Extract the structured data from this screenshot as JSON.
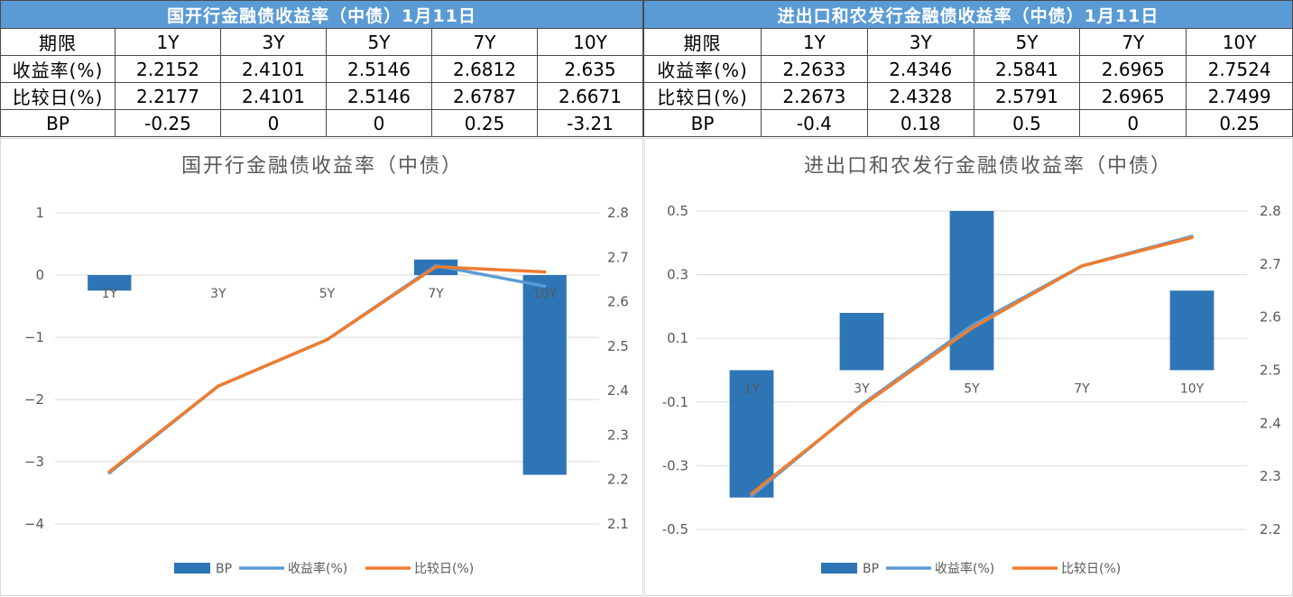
{
  "tables": [
    {
      "title": "国开行金融债收益率（中债）1月11日",
      "header": [
        "期限",
        "1Y",
        "3Y",
        "5Y",
        "7Y",
        "10Y"
      ],
      "rows": [
        [
          "收益率(%)",
          "2.2152",
          "2.4101",
          "2.5146",
          "2.6812",
          "2.635"
        ],
        [
          "比较日(%)",
          "2.2177",
          "2.4101",
          "2.5146",
          "2.6787",
          "2.6671"
        ],
        [
          "BP",
          "-0.25",
          "0",
          "0",
          "0.25",
          "-3.21"
        ]
      ]
    },
    {
      "title": "进出口和农发行金融债收益率（中债）1月11日",
      "header": [
        "期限",
        "1Y",
        "3Y",
        "5Y",
        "7Y",
        "10Y"
      ],
      "rows": [
        [
          "收益率(%)",
          "2.2633",
          "2.4346",
          "2.5841",
          "2.6965",
          "2.7524"
        ],
        [
          "比较日(%)",
          "2.2673",
          "2.4328",
          "2.5791",
          "2.6965",
          "2.7499"
        ],
        [
          "BP",
          "-0.4",
          "0.18",
          "0.5",
          "0",
          "0.25"
        ]
      ]
    }
  ],
  "chart_data": [
    {
      "type": "bar",
      "title": "国开行金融债收益率（中债）",
      "categories": [
        "1Y",
        "3Y",
        "5Y",
        "7Y",
        "10Y"
      ],
      "series": [
        {
          "name": "BP",
          "kind": "bar",
          "axis": "left",
          "color": "#2e75b6",
          "values": [
            -0.25,
            0,
            0,
            0.25,
            -3.21
          ]
        },
        {
          "name": "收益率(%)",
          "kind": "line",
          "axis": "right",
          "color": "#5b9bd5",
          "values": [
            2.2152,
            2.4101,
            2.5146,
            2.6812,
            2.635
          ]
        },
        {
          "name": "比较日(%)",
          "kind": "line",
          "axis": "right",
          "color": "#ed7d31",
          "values": [
            2.2177,
            2.4101,
            2.5146,
            2.6787,
            2.6671
          ]
        }
      ],
      "ylim_left": [
        -4,
        1
      ],
      "yticks_left": [
        1,
        0,
        -1,
        -2,
        -3,
        -4
      ],
      "ytick_labels_left": [
        "1",
        "0",
        "−1",
        "−2",
        "−3",
        "−4"
      ],
      "ylim_right": [
        2.1,
        2.8
      ],
      "yticks_right": [
        2.8,
        2.7,
        2.6,
        2.5,
        2.4,
        2.3,
        2.2,
        2.1
      ],
      "ytick_labels_right": [
        "2.8",
        "2.7",
        "2.6",
        "2.5",
        "2.4",
        "2.3",
        "2.2",
        "2.1"
      ],
      "grid": true,
      "legend": "bottom"
    },
    {
      "type": "bar",
      "title": "进出口和农发行金融债收益率（中债）",
      "categories": [
        "1Y",
        "3Y",
        "5Y",
        "7Y",
        "10Y"
      ],
      "series": [
        {
          "name": "BP",
          "kind": "bar",
          "axis": "left",
          "color": "#2e75b6",
          "values": [
            -0.4,
            0.18,
            0.5,
            0,
            0.25
          ]
        },
        {
          "name": "收益率(%)",
          "kind": "line",
          "axis": "right",
          "color": "#5b9bd5",
          "values": [
            2.2633,
            2.4346,
            2.5841,
            2.6965,
            2.7524
          ]
        },
        {
          "name": "比较日(%)",
          "kind": "line",
          "axis": "right",
          "color": "#ed7d31",
          "values": [
            2.2673,
            2.4328,
            2.5791,
            2.6965,
            2.7499
          ]
        }
      ],
      "ylim_left": [
        -0.5,
        0.5
      ],
      "yticks_left": [
        0.5,
        0.3,
        0.1,
        -0.1,
        -0.3,
        -0.5
      ],
      "ytick_labels_left": [
        "0.5",
        "0.3",
        "0.1",
        "-0.1",
        "-0.3",
        "-0.5"
      ],
      "ylim_right": [
        2.2,
        2.8
      ],
      "yticks_right": [
        2.8,
        2.7,
        2.6,
        2.5,
        2.4,
        2.3,
        2.2
      ],
      "ytick_labels_right": [
        "2.8",
        "2.7",
        "2.6",
        "2.5",
        "2.4",
        "2.3",
        "2.2"
      ],
      "grid": true,
      "legend": "bottom"
    }
  ]
}
